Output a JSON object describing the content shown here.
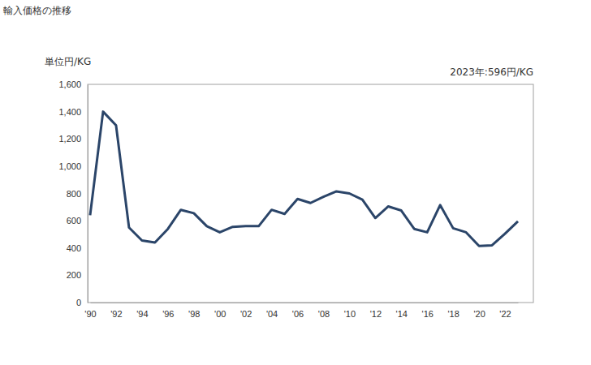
{
  "chart_data": {
    "type": "line",
    "title": "輸入価格の推移",
    "y_label": "単位円/KG",
    "annotation": "2023年:596円/KG",
    "categories": [
      "'90",
      null,
      "'92",
      null,
      "'94",
      null,
      "'96",
      null,
      "'98",
      null,
      "'00",
      null,
      "'02",
      null,
      "'04",
      null,
      "'06",
      null,
      "'08",
      null,
      "'10",
      null,
      "'12",
      null,
      "'14",
      null,
      "'16",
      null,
      "'18",
      null,
      "'20",
      null,
      "'22",
      null
    ],
    "values": [
      640,
      1400,
      1300,
      550,
      455,
      440,
      540,
      680,
      655,
      560,
      515,
      555,
      560,
      560,
      680,
      650,
      760,
      730,
      775,
      815,
      800,
      755,
      620,
      705,
      675,
      540,
      515,
      715,
      545,
      515,
      415,
      420,
      505,
      596
    ],
    "color": "#2b4569",
    "ylim": [
      0,
      1600
    ],
    "yticks": [
      0,
      200,
      400,
      600,
      800,
      {
        "value": 1000,
        "label": "1,000"
      },
      {
        "value": 1200,
        "label": "1,200"
      },
      {
        "value": 1400,
        "label": "1,400"
      },
      {
        "value": 1600,
        "label": "1,600"
      }
    ],
    "grid": false
  }
}
